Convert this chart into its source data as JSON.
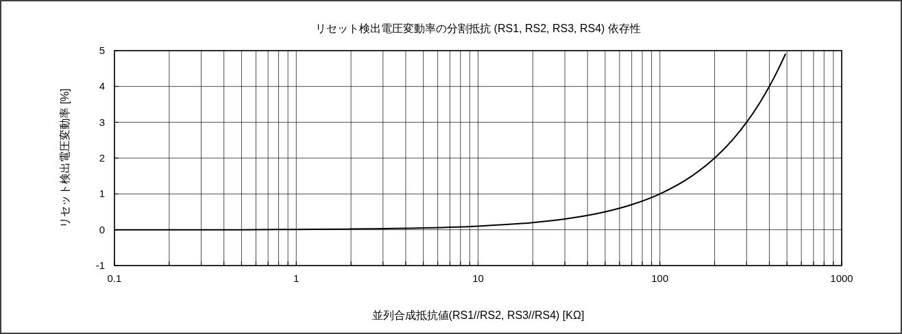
{
  "chart_data": {
    "type": "line",
    "title": "リセット検出電圧変動率の分割抵抗 (RS1, RS2, RS3, RS4) 依存性",
    "xlabel": "並列合成抵抗値(RS1//RS2, RS3//RS4) [KΩ]",
    "ylabel": "リセット検出電圧変動率  [%]",
    "log": "x",
    "x": [
      0.1,
      0.2,
      0.5,
      1,
      2,
      5,
      10,
      20,
      30,
      50,
      70,
      100,
      150,
      200,
      250,
      300,
      350,
      400,
      450,
      490
    ],
    "series": [
      {
        "color": "#000000",
        "values": [
          0,
          0,
          0,
          0.01,
          0.02,
          0.05,
          0.1,
          0.2,
          0.3,
          0.5,
          0.7,
          1,
          1.5,
          2,
          2.5,
          3,
          3.5,
          4,
          4.5,
          4.9
        ]
      }
    ],
    "xlim": [
      0.1,
      1000
    ],
    "ylim": [
      -1,
      5
    ],
    "xticks": [
      0.1,
      {
        "value": 0.2,
        "label": null
      },
      {
        "value": 0.3,
        "label": null
      },
      {
        "value": 0.4,
        "label": null
      },
      {
        "value": 0.5,
        "label": null
      },
      {
        "value": 0.6,
        "label": null
      },
      {
        "value": 0.7,
        "label": null
      },
      {
        "value": 0.8,
        "label": null
      },
      {
        "value": 0.9,
        "label": null
      },
      1,
      {
        "value": 2,
        "label": null
      },
      {
        "value": 3,
        "label": null
      },
      {
        "value": 4,
        "label": null
      },
      {
        "value": 5,
        "label": null
      },
      {
        "value": 6,
        "label": null
      },
      {
        "value": 7,
        "label": null
      },
      {
        "value": 8,
        "label": null
      },
      {
        "value": 9,
        "label": null
      },
      10,
      {
        "value": 20,
        "label": null
      },
      {
        "value": 30,
        "label": null
      },
      {
        "value": 40,
        "label": null
      },
      {
        "value": 50,
        "label": null
      },
      {
        "value": 60,
        "label": null
      },
      {
        "value": 70,
        "label": null
      },
      {
        "value": 80,
        "label": null
      },
      {
        "value": 90,
        "label": null
      },
      100,
      {
        "value": 200,
        "label": null
      },
      {
        "value": 300,
        "label": null
      },
      {
        "value": 400,
        "label": null
      },
      {
        "value": 500,
        "label": null
      },
      {
        "value": 600,
        "label": null
      },
      {
        "value": 700,
        "label": null
      },
      {
        "value": 800,
        "label": null
      },
      {
        "value": 900,
        "label": null
      },
      1000
    ],
    "yticks": [
      -1,
      0,
      1,
      2,
      3,
      4,
      5
    ],
    "grid": true,
    "marker": "none",
    "line_style": "solid"
  }
}
